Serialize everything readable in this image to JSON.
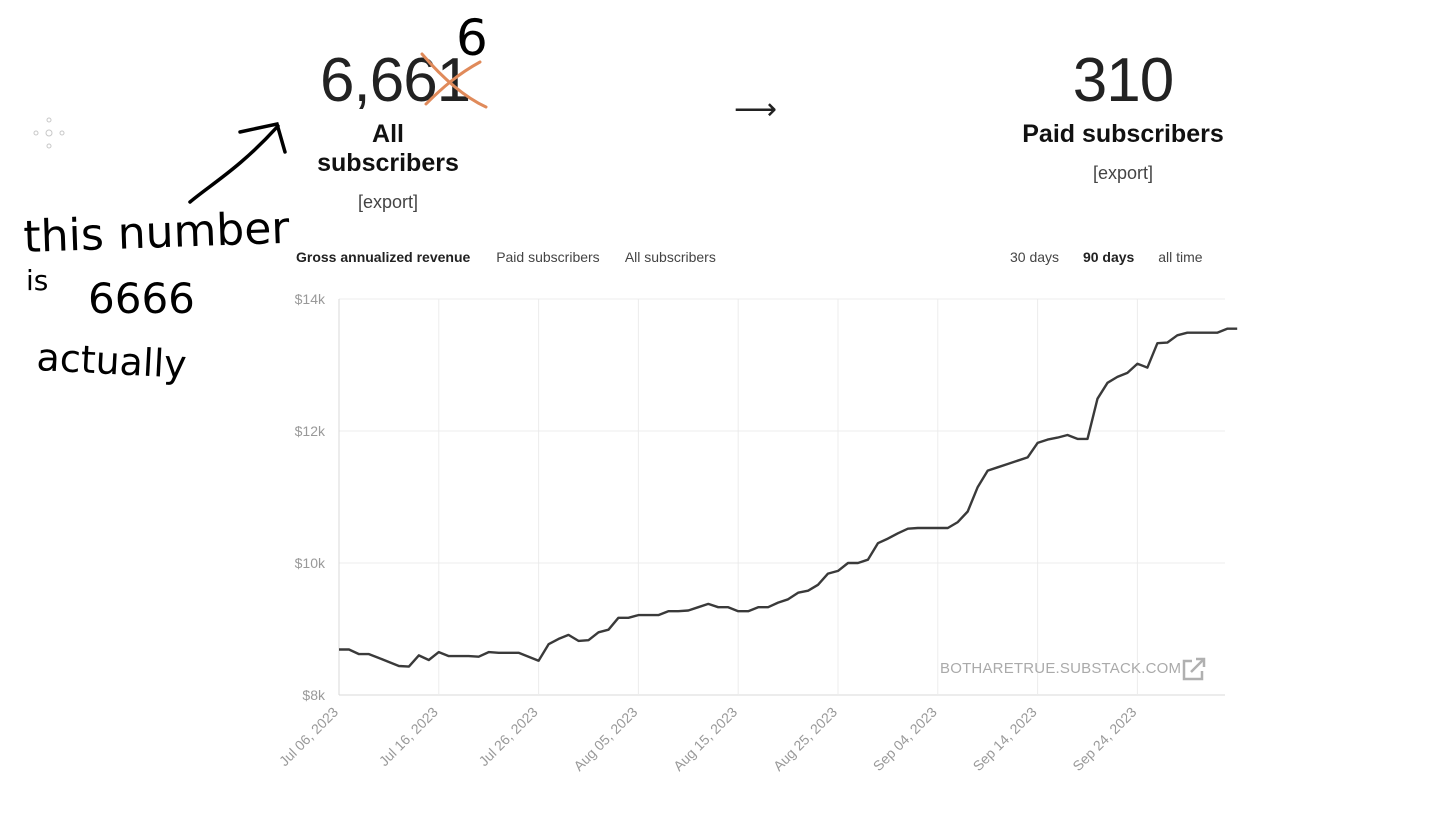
{
  "stats": {
    "all": {
      "value": "6,66",
      "struck_digit": "1",
      "correction_digit": "6",
      "label": "All subscribers",
      "export": "[export]"
    },
    "arrow": "⟶",
    "paid": {
      "value": "310",
      "label": "Paid subscribers",
      "export": "[export]"
    }
  },
  "metric_tabs": [
    {
      "label": "Gross annualized revenue",
      "active": true
    },
    {
      "label": "Paid subscribers",
      "active": false
    },
    {
      "label": "All subscribers",
      "active": false
    }
  ],
  "range_tabs": [
    {
      "label": "30 days",
      "active": false
    },
    {
      "label": "90 days",
      "active": true
    },
    {
      "label": "all time",
      "active": false
    }
  ],
  "watermark": "BOTHARETRUE.SUBSTACK.COM",
  "annotation": {
    "lines": [
      "this number",
      "is",
      "6666",
      "actually"
    ]
  },
  "colors": {
    "line": "#3a3a3a",
    "grid": "#ececec",
    "strike": "#e08a5a",
    "ink": "#000000"
  },
  "chart_data": {
    "type": "line",
    "title": "",
    "xlabel": "",
    "ylabel": "",
    "ylim": [
      8000,
      14000
    ],
    "yticks": [
      8000,
      10000,
      12000,
      14000
    ],
    "ytick_labels": [
      "$8k",
      "$10k",
      "$12k",
      "$14k"
    ],
    "xticks": [
      "Jul 06, 2023",
      "Jul 16, 2023",
      "Jul 26, 2023",
      "Aug 05, 2023",
      "Aug 15, 2023",
      "Aug 25, 2023",
      "Sep 04, 2023",
      "Sep 14, 2023",
      "Sep 24, 2023"
    ],
    "grid": true,
    "series": [
      {
        "start_date": "2023-07-06",
        "values": [
          8690,
          8690,
          8620,
          8620,
          8560,
          8500,
          8440,
          8430,
          8600,
          8530,
          8650,
          8590,
          8590,
          8590,
          8580,
          8650,
          8640,
          8640,
          8640,
          8580,
          8520,
          8770,
          8850,
          8910,
          8820,
          8830,
          8950,
          8990,
          9170,
          9170,
          9210,
          9210,
          9210,
          9270,
          9270,
          9280,
          9330,
          9380,
          9330,
          9330,
          9270,
          9270,
          9330,
          9330,
          9400,
          9450,
          9550,
          9580,
          9670,
          9840,
          9880,
          10000,
          10000,
          10050,
          10300,
          10370,
          10450,
          10520,
          10530,
          10530,
          10530,
          10530,
          10620,
          10780,
          11150,
          11400,
          11450,
          11500,
          11550,
          11600,
          11820,
          11870,
          11900,
          11940,
          11880,
          11880,
          12490,
          12730,
          12820,
          12880,
          13020,
          12960,
          13330,
          13340,
          13450,
          13490,
          13490,
          13490,
          13490,
          13550,
          13550
        ]
      }
    ]
  }
}
